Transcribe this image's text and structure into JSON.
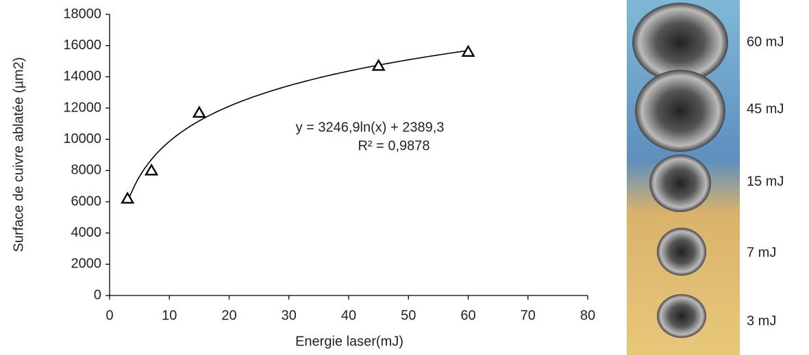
{
  "chart_data": {
    "type": "scatter",
    "x_label": "Energie laser(mJ)",
    "y_label": "Surface  de cuivre ablatée (µm2)",
    "x": [
      3,
      7,
      15,
      45,
      60
    ],
    "values": [
      6200,
      8000,
      11700,
      14700,
      15600
    ],
    "color": "#000000",
    "xlim": [
      0,
      80
    ],
    "xticks": [
      0,
      10,
      20,
      30,
      40,
      50,
      60,
      70,
      80
    ],
    "ylim": [
      0,
      18000
    ],
    "yticks": [
      0,
      2000,
      4000,
      6000,
      8000,
      10000,
      12000,
      14000,
      16000,
      18000
    ],
    "grid": false,
    "trendline": {
      "equation": "y = 3246,9ln(x) + 2389,3",
      "r2": "R² = 0,9878",
      "a": 3246.9,
      "b": 2389.3
    },
    "photo_labels": [
      "60 mJ",
      "45 mJ",
      "15 mJ",
      "7 mJ",
      "3 mJ"
    ]
  }
}
